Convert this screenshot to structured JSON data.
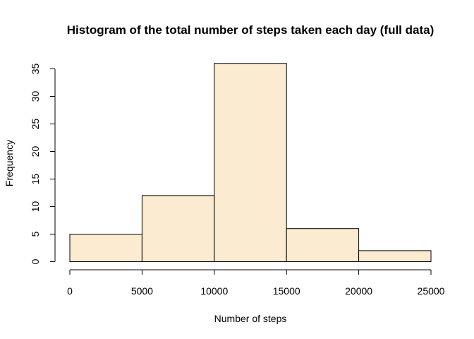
{
  "chart_data": {
    "type": "bar",
    "title": "Histogram of the total number of steps taken each day (full data)",
    "xlabel": "Number of steps",
    "ylabel": "Frequency",
    "bins": [
      {
        "x_start": 0,
        "x_end": 5000,
        "value": 5
      },
      {
        "x_start": 5000,
        "x_end": 10000,
        "value": 12
      },
      {
        "x_start": 10000,
        "x_end": 15000,
        "value": 36
      },
      {
        "x_start": 15000,
        "x_end": 20000,
        "value": 6
      },
      {
        "x_start": 20000,
        "x_end": 25000,
        "value": 2
      }
    ],
    "xlim": [
      0,
      25000
    ],
    "ylim": [
      0,
      36
    ],
    "x_ticks": [
      0,
      5000,
      10000,
      15000,
      20000,
      25000
    ],
    "x_tick_labels": [
      "0",
      "5000",
      "10000",
      "15000",
      "20000",
      "25000"
    ],
    "y_ticks": [
      0,
      5,
      10,
      15,
      20,
      25,
      30,
      35
    ],
    "y_tick_labels": [
      "0",
      "5",
      "10",
      "15",
      "20",
      "25",
      "30",
      "35"
    ],
    "bar_fill": "#FBEBD0",
    "bar_stroke": "#000000",
    "grid": false,
    "legend": "none"
  }
}
